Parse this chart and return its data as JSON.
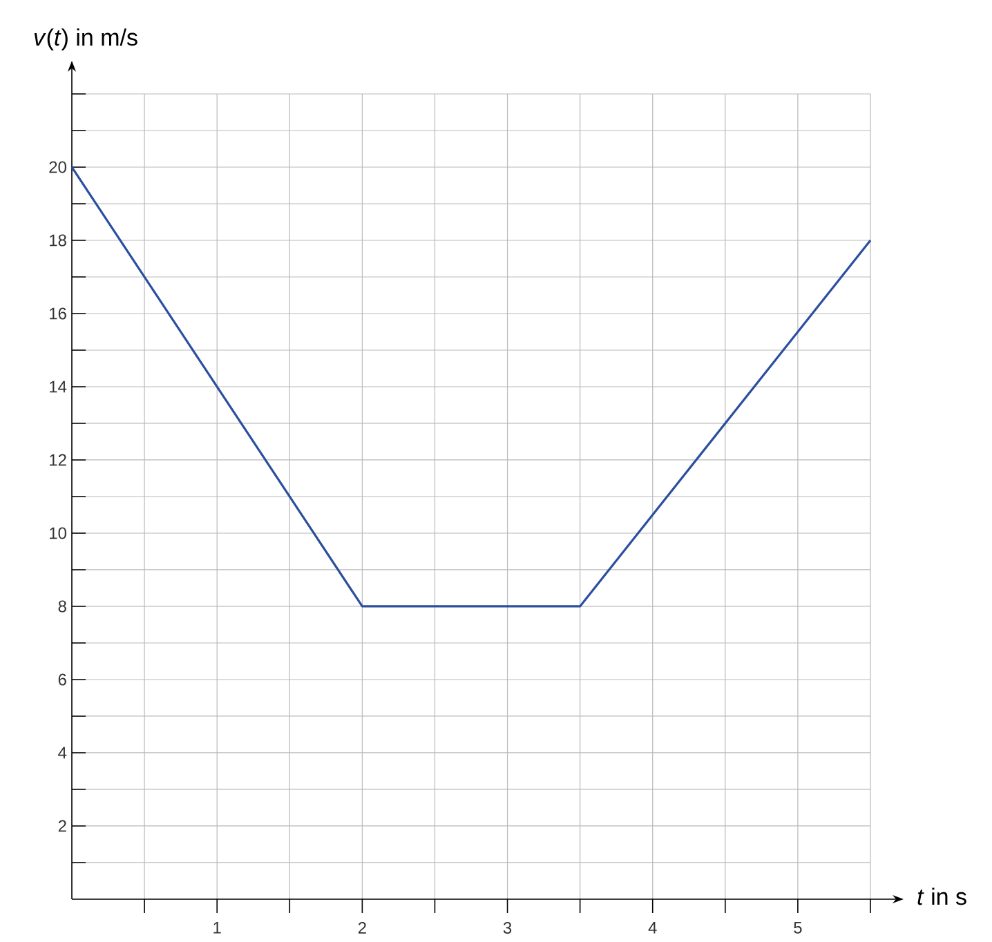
{
  "chart_data": {
    "type": "line",
    "xlabel": "*t* in s",
    "ylabel": "*v*(*t*) in m/s",
    "x": [
      0,
      2,
      3.5,
      5.5
    ],
    "series": [
      {
        "color": "#2b4f9e",
        "values": [
          20,
          8,
          8,
          18
        ]
      }
    ],
    "xlim": [
      0,
      5.5
    ],
    "ylim": [
      0,
      22
    ],
    "xticks": [
      {
        "value": 0.5,
        "label": null
      },
      1,
      {
        "value": 1.5,
        "label": null
      },
      2,
      {
        "value": 2.5,
        "label": null
      },
      3,
      {
        "value": 3.5,
        "label": null
      },
      4,
      {
        "value": 4.5,
        "label": null
      },
      5,
      {
        "value": 5.5,
        "label": null
      }
    ],
    "yticks": [
      {
        "value": 1,
        "label": null
      },
      2,
      {
        "value": 3,
        "label": null
      },
      4,
      {
        "value": 5,
        "label": null
      },
      6,
      {
        "value": 7,
        "label": null
      },
      8,
      {
        "value": 9,
        "label": null
      },
      10,
      {
        "value": 11,
        "label": null
      },
      12,
      {
        "value": 13,
        "label": null
      },
      14,
      {
        "value": 15,
        "label": null
      },
      16,
      {
        "value": 17,
        "label": null
      },
      18,
      {
        "value": 19,
        "label": null
      },
      20,
      {
        "value": 21,
        "label": null
      },
      {
        "value": 22,
        "label": null
      }
    ],
    "grid": true,
    "marker": "none",
    "line_style": "solid"
  }
}
